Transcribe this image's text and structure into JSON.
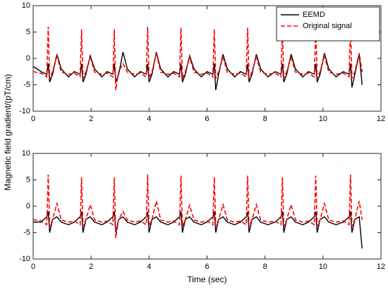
{
  "chart_data": [
    {
      "type": "line",
      "ylabel": "Magnetic field gradient/(pT/cm)",
      "xlim": [
        0,
        12
      ],
      "xticks": [
        0,
        2,
        4,
        6,
        8,
        10,
        12
      ],
      "ylim": [
        -10,
        10
      ],
      "yticks": [
        -10,
        -5,
        0,
        5,
        10
      ],
      "legend": "upper right",
      "x": [
        0,
        0.27,
        0.47,
        0.52,
        0.57,
        0.67,
        0.82,
        0.97,
        1.22,
        1.42,
        1.62,
        1.67,
        1.72,
        1.82,
        1.97,
        2.12,
        2.37,
        2.55,
        2.75,
        2.8,
        2.85,
        2.95,
        3.1,
        3.25,
        3.5,
        3.7,
        3.9,
        3.95,
        4.0,
        4.1,
        4.25,
        4.4,
        4.65,
        4.85,
        5.05,
        5.1,
        5.15,
        5.25,
        5.4,
        5.55,
        5.8,
        6.0,
        6.2,
        6.25,
        6.3,
        6.4,
        6.55,
        6.7,
        6.95,
        7.15,
        7.35,
        7.4,
        7.45,
        7.55,
        7.7,
        7.85,
        8.1,
        8.35,
        8.55,
        8.6,
        8.65,
        8.75,
        8.9,
        9.05,
        9.3,
        9.5,
        9.7,
        9.75,
        9.8,
        9.9,
        10.05,
        10.2,
        10.45,
        10.7,
        10.9,
        10.95,
        11.0,
        11.1,
        11.25,
        11.35
      ],
      "series": [
        {
          "name": "EEMD",
          "color": "#000000",
          "line_style": "solid",
          "values": [
            -1.5,
            -2.5,
            -3,
            -1,
            -4.5,
            -3,
            0.8,
            -2,
            -3.5,
            -2.5,
            -3,
            -1,
            -4.5,
            -3,
            0.5,
            -2,
            -3.5,
            -2.5,
            -3,
            -1,
            -4.5,
            -3,
            1.2,
            -2,
            -3.5,
            -2.5,
            -3,
            -1,
            -4.5,
            -3,
            1.2,
            -2,
            -3.5,
            -2.5,
            -3,
            -1,
            -4.5,
            -3,
            0.5,
            -2,
            -3.5,
            -2.5,
            -3,
            -1,
            -6,
            -3,
            0.8,
            -2,
            -3.5,
            -2.5,
            -3,
            -1,
            -4.5,
            -3,
            0.8,
            -2,
            -3.5,
            -2.5,
            -3,
            -1,
            -4.5,
            -3,
            0.8,
            -2,
            -3.5,
            -2.5,
            -3,
            -1,
            -4.5,
            -3,
            1,
            -2,
            -3.5,
            -2.5,
            -3,
            -1,
            -5.5,
            -3,
            0.8,
            -5
          ]
        },
        {
          "name": "Original signal",
          "color": "#ff0000",
          "line_style": "dashed",
          "values": [
            -2.5,
            -2.8,
            -3.5,
            6,
            -3.8,
            -2.5,
            0.5,
            -2.6,
            -3.0,
            -2.8,
            -3.5,
            5.5,
            -3.8,
            -2.5,
            0.3,
            -2.6,
            -3.0,
            -2.8,
            -3.5,
            5.5,
            -6,
            -2.5,
            -1,
            -2.6,
            -3.0,
            -2.8,
            -3.5,
            6,
            -3.8,
            -2.5,
            1,
            -2.6,
            -3.0,
            -2.8,
            -3.5,
            5.8,
            -3.8,
            -2.5,
            0.2,
            -2.6,
            -3.0,
            -2.8,
            -3.5,
            5.5,
            -3.8,
            -2.5,
            0.3,
            -2.6,
            -3.0,
            -2.8,
            -3.5,
            5.8,
            -3.8,
            -2.5,
            0.3,
            -2.6,
            -3.0,
            -2.8,
            -3.5,
            5.5,
            -3.8,
            -2.5,
            0.3,
            -2.6,
            -3.0,
            -2.8,
            -3.5,
            5.8,
            -3.8,
            -2.5,
            0.5,
            -2.6,
            -3.0,
            -2.8,
            -3.5,
            6,
            -3.8,
            -2.5,
            1,
            -2.6
          ]
        }
      ]
    },
    {
      "type": "line",
      "xlabel": "Time (sec)",
      "xlim": [
        0,
        12
      ],
      "xticks": [
        0,
        2,
        4,
        6,
        8,
        10,
        12
      ],
      "ylim": [
        -10,
        10
      ],
      "yticks": [
        -10,
        -5,
        0,
        5,
        10
      ],
      "x": [
        0,
        0.27,
        0.47,
        0.52,
        0.57,
        0.67,
        0.82,
        0.97,
        1.22,
        1.42,
        1.62,
        1.67,
        1.72,
        1.82,
        1.97,
        2.12,
        2.37,
        2.55,
        2.75,
        2.8,
        2.85,
        2.95,
        3.1,
        3.25,
        3.5,
        3.7,
        3.9,
        3.95,
        4.0,
        4.1,
        4.25,
        4.4,
        4.65,
        4.85,
        5.05,
        5.1,
        5.15,
        5.25,
        5.4,
        5.55,
        5.8,
        6.0,
        6.2,
        6.25,
        6.3,
        6.4,
        6.55,
        6.7,
        6.95,
        7.15,
        7.35,
        7.4,
        7.45,
        7.55,
        7.7,
        7.85,
        8.1,
        8.35,
        8.55,
        8.6,
        8.65,
        8.75,
        8.9,
        9.05,
        9.3,
        9.5,
        9.7,
        9.75,
        9.8,
        9.9,
        10.05,
        10.2,
        10.45,
        10.7,
        10.9,
        10.95,
        11.0,
        11.1,
        11.25,
        11.35
      ],
      "series": [
        {
          "color": "#000000",
          "line_style": "solid",
          "values": [
            -3,
            -3,
            -2,
            -1,
            -5,
            -2.5,
            -2,
            -3,
            -3.5,
            -3,
            -2,
            -1,
            -5,
            -2.5,
            -2,
            -3,
            -3.5,
            -3,
            -2,
            -1,
            -5,
            -2.5,
            -2,
            -3,
            -3.5,
            -3,
            -2,
            -1,
            -5,
            -2.5,
            -2,
            -3,
            -3.5,
            -3,
            -2,
            -1,
            -5,
            -2.5,
            -2,
            -3,
            -3.5,
            -3,
            -2,
            -1,
            -5,
            -2.5,
            -2,
            -3,
            -3.5,
            -3,
            -2,
            -1,
            -5,
            -2.5,
            -2,
            -3,
            -3.5,
            -3,
            -2,
            -1,
            -5,
            -2.5,
            -2,
            -3,
            -3.5,
            -3,
            -2,
            -1,
            -5,
            -2.5,
            -2,
            -3,
            -3.5,
            -3,
            -2,
            -1,
            -5,
            -2.5,
            -2,
            -8
          ]
        },
        {
          "color": "#ff0000",
          "line_style": "dashed",
          "values": [
            -2.5,
            -2.8,
            -3.5,
            6,
            -3.8,
            -2.5,
            0.5,
            -2.6,
            -3.0,
            -2.8,
            -3.5,
            5.5,
            -3.8,
            -2.5,
            0.3,
            -2.6,
            -3.0,
            -2.8,
            -3.5,
            5.5,
            -6,
            -2.5,
            -1,
            -2.6,
            -3.0,
            -2.8,
            -3.5,
            6,
            -3.8,
            -2.5,
            1,
            -2.6,
            -3.0,
            -2.8,
            -3.5,
            5.8,
            -3.8,
            -2.5,
            0.2,
            -2.6,
            -3.0,
            -2.8,
            -3.5,
            5.5,
            -3.8,
            -2.5,
            0.3,
            -2.6,
            -3.0,
            -2.8,
            -3.5,
            5.8,
            -3.8,
            -2.5,
            0.3,
            -2.6,
            -3.0,
            -2.8,
            -3.5,
            5.5,
            -3.8,
            -2.5,
            0.3,
            -2.6,
            -3.0,
            -2.8,
            -3.5,
            5.8,
            -3.8,
            -2.5,
            0.5,
            -2.6,
            -3.0,
            -2.8,
            -3.5,
            6,
            -3.8,
            -2.5,
            1,
            -2.6
          ]
        }
      ]
    }
  ]
}
